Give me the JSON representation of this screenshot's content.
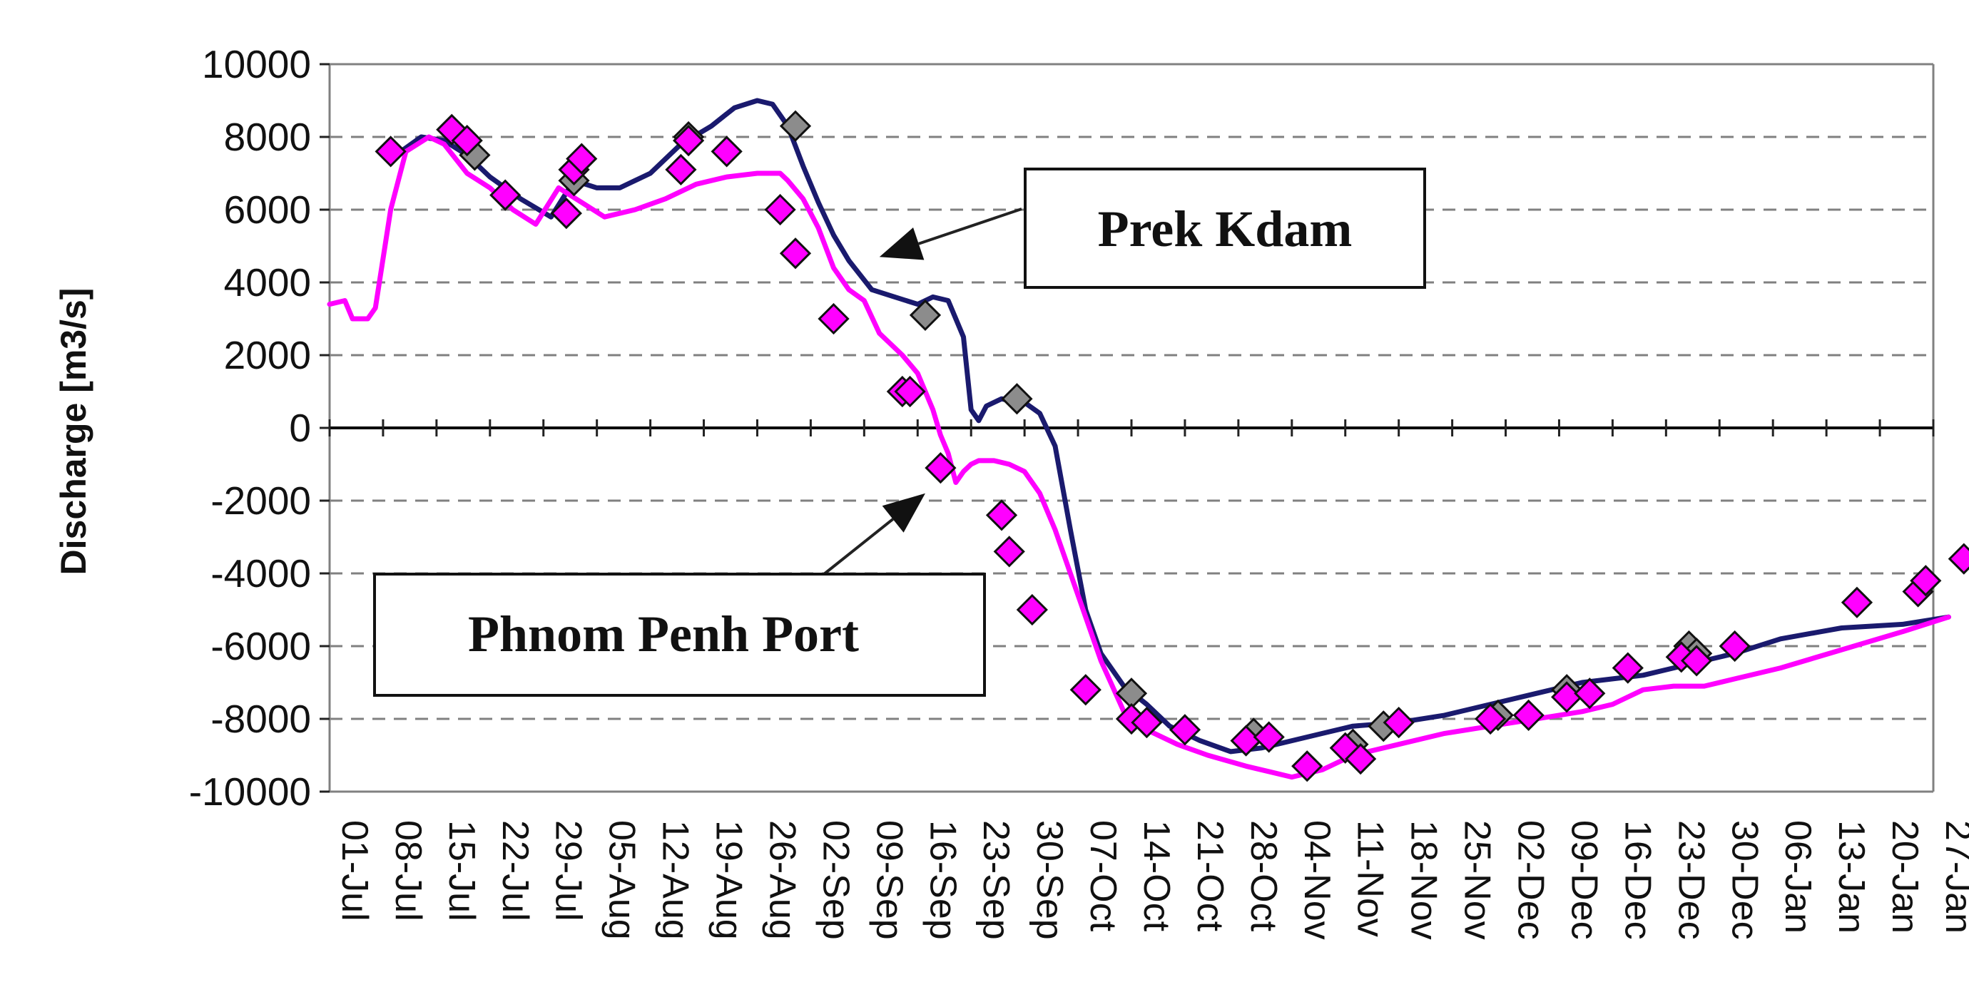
{
  "chart_data": {
    "type": "line",
    "ylabel": "Discharge [m3/s]",
    "xlabel": "",
    "ylim": [
      -10000,
      10000
    ],
    "yticks": [
      10000,
      8000,
      6000,
      4000,
      2000,
      0,
      -2000,
      -4000,
      -6000,
      -8000,
      -10000
    ],
    "xlim_days": [
      0,
      210
    ],
    "xticks": [
      "01-Jul",
      "08-Jul",
      "15-Jul",
      "22-Jul",
      "29-Jul",
      "05-Aug",
      "12-Aug",
      "19-Aug",
      "26-Aug",
      "02-Sep",
      "09-Sep",
      "16-Sep",
      "23-Sep",
      "30-Sep",
      "07-Oct",
      "14-Oct",
      "21-Oct",
      "28-Oct",
      "04-Nov",
      "11-Nov",
      "18-Nov",
      "25-Nov",
      "02-Dec",
      "09-Dec",
      "16-Dec",
      "23-Dec",
      "30-Dec",
      "06-Jan",
      "13-Jan",
      "20-Jan",
      "27-Jan"
    ],
    "grid": "horizontal dashed",
    "colors": {
      "prek_kdam": "#1a1a6e",
      "phnom_penh": "#ff00ff",
      "marker_magenta": "#ff00ff",
      "marker_gray": "#8c8c8c",
      "zero_line": "#000000",
      "grid": "#808080"
    },
    "annotations": [
      {
        "text": "Prek Kdam",
        "arrow_to": {
          "x": 72,
          "y": 4700
        }
      },
      {
        "text": "Phnom Penh Port",
        "arrow_to": {
          "x": 78,
          "y": -1800
        }
      }
    ],
    "series": [
      {
        "style": "line",
        "color": "#1a1a6e",
        "x": [
          8,
          12,
          15,
          18,
          21,
          25,
          29,
          32,
          35,
          38,
          42,
          46,
          50,
          53,
          56,
          58,
          60,
          62,
          64,
          66,
          68,
          71,
          74,
          77,
          79,
          81,
          83,
          84,
          85,
          86,
          88,
          90,
          91,
          93,
          95,
          97,
          99,
          101,
          104,
          107,
          110,
          114,
          118,
          122,
          126,
          130,
          134,
          140,
          146,
          152,
          158,
          164,
          168,
          172,
          176,
          180,
          184,
          190,
          198,
          206,
          212
        ],
        "y": [
          7400,
          8000,
          7900,
          7500,
          6900,
          6300,
          5800,
          6800,
          6600,
          6600,
          7000,
          7800,
          8300,
          8800,
          9000,
          8900,
          8300,
          7200,
          6200,
          5300,
          4600,
          3800,
          3600,
          3400,
          3600,
          3500,
          2500,
          500,
          200,
          600,
          800,
          700,
          700,
          400,
          -500,
          -2800,
          -5000,
          -6200,
          -7100,
          -7600,
          -8200,
          -8600,
          -8900,
          -8800,
          -8600,
          -8400,
          -8200,
          -8100,
          -7900,
          -7600,
          -7300,
          -7000,
          -6900,
          -6800,
          -6600,
          -6400,
          -6200,
          -5800,
          -5500,
          -5400,
          -5200
        ]
      },
      {
        "style": "line",
        "color": "#ff00ff",
        "x": [
          0,
          2,
          3,
          5,
          6,
          8,
          10,
          13,
          15,
          18,
          21,
          24,
          27,
          30,
          33,
          36,
          40,
          44,
          48,
          52,
          56,
          59,
          60,
          62,
          64,
          66,
          68,
          70,
          72,
          75,
          77,
          79,
          80,
          81,
          82,
          83,
          84,
          85,
          87,
          89,
          91,
          93,
          95,
          97,
          99,
          101,
          104,
          107,
          111,
          115,
          120,
          126,
          130,
          134,
          140,
          146,
          152,
          158,
          164,
          168,
          172,
          176,
          180,
          184,
          190,
          198,
          206,
          212
        ],
        "y": [
          3400,
          3500,
          3000,
          3000,
          3300,
          6000,
          7600,
          8000,
          7800,
          7000,
          6600,
          6000,
          5600,
          6600,
          6200,
          5800,
          6000,
          6300,
          6700,
          6900,
          7000,
          7000,
          6800,
          6300,
          5500,
          4400,
          3800,
          3500,
          2600,
          2000,
          1500,
          500,
          -200,
          -700,
          -1500,
          -1200,
          -1000,
          -900,
          -900,
          -1000,
          -1200,
          -1800,
          -2800,
          -4000,
          -5200,
          -6400,
          -7800,
          -8300,
          -8700,
          -9000,
          -9300,
          -9600,
          -9400,
          -9000,
          -8700,
          -8400,
          -8200,
          -8000,
          -7800,
          -7600,
          -7200,
          -7100,
          -7100,
          -6900,
          -6600,
          -6100,
          -5600,
          -5200
        ]
      },
      {
        "style": "marker",
        "marker": "diamond",
        "color": "#8c8c8c",
        "x": [
          19,
          32,
          47,
          61,
          78,
          90,
          105,
          121,
          134,
          138,
          153,
          162,
          178,
          179
        ],
        "y": [
          7500,
          6800,
          8000,
          8300,
          3100,
          800,
          -7300,
          -8400,
          -8700,
          -8200,
          -7900,
          -7200,
          -6000,
          -6200
        ]
      },
      {
        "style": "marker",
        "marker": "diamond",
        "color": "#ff00ff",
        "x": [
          8,
          16,
          18,
          23,
          31,
          32,
          33,
          46,
          47,
          52,
          59,
          61,
          66,
          75,
          76,
          80,
          88,
          89,
          92,
          99,
          105,
          107,
          112,
          120,
          123,
          128,
          133,
          135,
          140,
          152,
          157,
          162,
          165,
          170,
          177,
          179,
          184,
          200,
          208,
          209,
          214
        ],
        "y": [
          7600,
          8200,
          7900,
          6400,
          5900,
          7100,
          7400,
          7100,
          7900,
          7600,
          6000,
          4800,
          3000,
          1000,
          1000,
          -1100,
          -2400,
          -3400,
          -5000,
          -7200,
          -8000,
          -8100,
          -8300,
          -8600,
          -8500,
          -9300,
          -8800,
          -9100,
          -8100,
          -8000,
          -7900,
          -7400,
          -7300,
          -6600,
          -6300,
          -6400,
          -6000,
          -4800,
          -4500,
          -4200,
          -3600
        ]
      }
    ]
  }
}
